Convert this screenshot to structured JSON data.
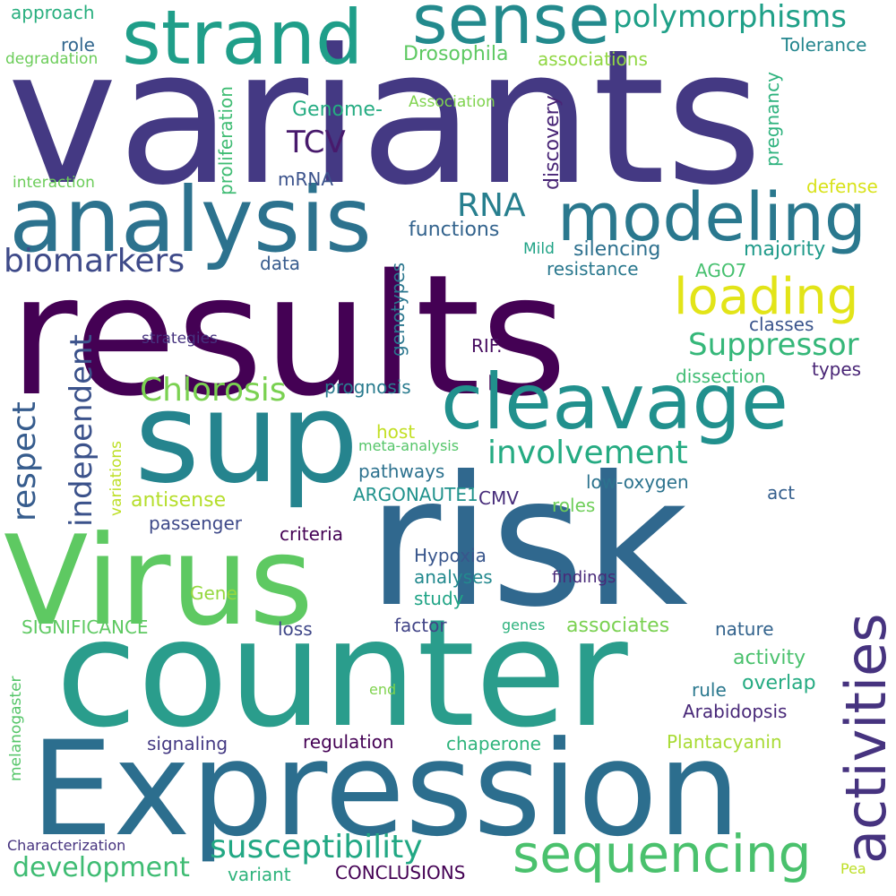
{
  "words": [
    {
      "text": "variants",
      "color": "#443983"
    },
    {
      "text": "results",
      "color": "#440154"
    },
    {
      "text": "counter",
      "color": "#2a9d8c"
    },
    {
      "text": "Expression",
      "color": "#2c6e8e"
    },
    {
      "text": "risk",
      "color": "#30688e"
    },
    {
      "text": "sup",
      "color": "#25848e"
    },
    {
      "text": "Virus",
      "color": "#5ec962"
    },
    {
      "text": "analysis",
      "color": "#2c728e"
    },
    {
      "text": "strand",
      "color": "#1f9e89"
    },
    {
      "text": "sense",
      "color": "#238a8d"
    },
    {
      "text": "modeling",
      "color": "#2a788e"
    },
    {
      "text": "cleavage",
      "color": "#21908d"
    },
    {
      "text": "activities",
      "color": "#46337f"
    },
    {
      "text": "sequencing",
      "color": "#4ac16d"
    },
    {
      "text": "loading",
      "color": "#e2e418"
    },
    {
      "text": "polymorphisms",
      "color": "#1fa088"
    },
    {
      "text": "biomarkers",
      "color": "#3e4a89"
    },
    {
      "text": "Chlorosis",
      "color": "#7ad151"
    },
    {
      "text": "Suppressor",
      "color": "#35b779"
    },
    {
      "text": "involvement",
      "color": "#25ab82"
    },
    {
      "text": "susceptibility",
      "color": "#22a884"
    },
    {
      "text": "development",
      "color": "#3fbc73"
    },
    {
      "text": "independent",
      "color": "#3b528b"
    },
    {
      "text": "respect",
      "color": "#365c8d"
    },
    {
      "text": "RNA",
      "color": "#277f8e"
    },
    {
      "text": "TCV",
      "color": "#481a6c"
    },
    {
      "text": "Drosophila",
      "color": "#5ec962"
    },
    {
      "text": "associations",
      "color": "#90d743"
    },
    {
      "text": "approach",
      "color": "#29af7f"
    },
    {
      "text": "role",
      "color": "#31668e"
    },
    {
      "text": "degradation",
      "color": "#6ccd5a"
    },
    {
      "text": "Tolerance",
      "color": "#24868e"
    },
    {
      "text": "Genome-",
      "color": "#25ac82"
    },
    {
      "text": "mRNA",
      "color": "#3b528b"
    },
    {
      "text": "Association",
      "color": "#7fd34e"
    },
    {
      "text": "interaction",
      "color": "#6ccd5a"
    },
    {
      "text": "defense",
      "color": "#d8e219"
    },
    {
      "text": "proliferation",
      "color": "#3fbc73"
    },
    {
      "text": "discovery",
      "color": "#482576"
    },
    {
      "text": "pregnancy",
      "color": "#2db27d"
    },
    {
      "text": "functions",
      "color": "#33638d"
    },
    {
      "text": "Mild",
      "color": "#20a386"
    },
    {
      "text": "silencing",
      "color": "#2d708e"
    },
    {
      "text": "majority",
      "color": "#1f9a8a"
    },
    {
      "text": "data",
      "color": "#375b8d"
    },
    {
      "text": "resistance",
      "color": "#2a788e"
    },
    {
      "text": "AGO7",
      "color": "#46c06f"
    },
    {
      "text": "classes",
      "color": "#3a548c"
    },
    {
      "text": "strategies",
      "color": "#46337f"
    },
    {
      "text": "RIF.",
      "color": "#470d60"
    },
    {
      "text": "dissection",
      "color": "#3fbc73"
    },
    {
      "text": "types",
      "color": "#482475"
    },
    {
      "text": "genotypes",
      "color": "#2a768e"
    },
    {
      "text": "prognosis",
      "color": "#297b8e"
    },
    {
      "text": "host",
      "color": "#c2df23"
    },
    {
      "text": "meta-analysis",
      "color": "#54c568"
    },
    {
      "text": "variations",
      "color": "#bddf26"
    },
    {
      "text": "pathways",
      "color": "#2c718e"
    },
    {
      "text": "low-oxygen",
      "color": "#2c738e"
    },
    {
      "text": "antisense",
      "color": "#b5de2b"
    },
    {
      "text": "ARGONAUTE1",
      "color": "#20928c"
    },
    {
      "text": "CMV",
      "color": "#472c7a"
    },
    {
      "text": "roles",
      "color": "#6ece58"
    },
    {
      "text": "act",
      "color": "#355f8d"
    },
    {
      "text": "passenger",
      "color": "#3e4989"
    },
    {
      "text": "criteria",
      "color": "#440154"
    },
    {
      "text": "Hypoxia",
      "color": "#39568c"
    },
    {
      "text": "analyses",
      "color": "#23898e"
    },
    {
      "text": "study",
      "color": "#20a486"
    },
    {
      "text": "findings",
      "color": "#482979"
    },
    {
      "text": "Gene",
      "color": "#95d840"
    },
    {
      "text": "SIGNIFICANCE",
      "color": "#5ec962"
    },
    {
      "text": "factor",
      "color": "#414487"
    },
    {
      "text": "genes",
      "color": "#2db27d"
    },
    {
      "text": "associates",
      "color": "#7ad151"
    },
    {
      "text": "nature",
      "color": "#33638d"
    },
    {
      "text": "loss",
      "color": "#3f4788"
    },
    {
      "text": "activity",
      "color": "#4ac16d"
    },
    {
      "text": "melanogaster",
      "color": "#54c568"
    },
    {
      "text": "end",
      "color": "#7fd34e"
    },
    {
      "text": "rule",
      "color": "#2a788e"
    },
    {
      "text": "overlap",
      "color": "#25ab82"
    },
    {
      "text": "Arabidopsis",
      "color": "#482878"
    },
    {
      "text": "signaling",
      "color": "#443983"
    },
    {
      "text": "regulation",
      "color": "#440154"
    },
    {
      "text": "chaperone",
      "color": "#2fb47c"
    },
    {
      "text": "Plantacyanin",
      "color": "#a8db34"
    },
    {
      "text": "Characterization",
      "color": "#46337f"
    },
    {
      "text": "variant",
      "color": "#2eb37c"
    },
    {
      "text": "CONCLUSIONS",
      "color": "#440154"
    },
    {
      "text": "Pea",
      "color": "#bddf26"
    }
  ]
}
